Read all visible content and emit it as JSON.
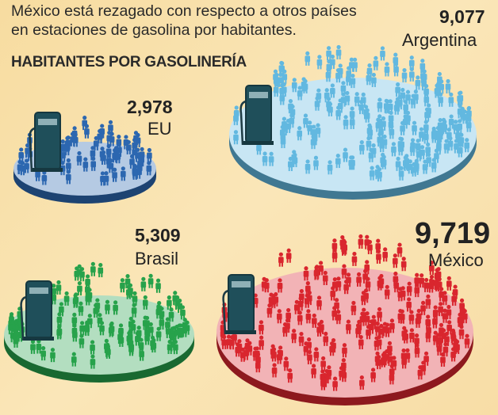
{
  "intro": "México está rezagado con respecto a otros países en estaciones de gasolina por habitantes.",
  "heading": "HABITANTES POR GASOLINERÍA",
  "chart_data": {
    "type": "pictogram",
    "title": "HABITANTES POR GASOLINERÍA",
    "categories": [
      "EU",
      "Argentina",
      "Brasil",
      "México"
    ],
    "values": [
      2978,
      9077,
      5309,
      9719
    ],
    "value_labels": [
      "2,978",
      "9,077",
      "5,309",
      "9,719"
    ],
    "colors": {
      "EU": "#2c67b0",
      "Argentina": "#62b8e0",
      "Brasil": "#27a24b",
      "México": "#d9262e"
    },
    "icons": {
      "station": "gas-pump-icon",
      "person": "person-icon"
    }
  }
}
